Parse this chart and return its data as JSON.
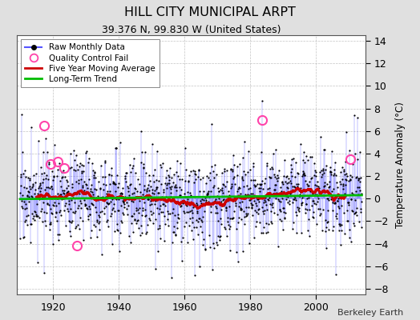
{
  "title": "HILL CITY MUNICIPAL ARPT",
  "subtitle": "39.376 N, 99.830 W (United States)",
  "ylabel": "Temperature Anomaly (°C)",
  "attribution": "Berkeley Earth",
  "start_year": 1910,
  "end_year": 2013,
  "ylim": [
    -8.5,
    14.5
  ],
  "yticks": [
    -8,
    -6,
    -4,
    -2,
    0,
    2,
    4,
    6,
    8,
    10,
    12,
    14
  ],
  "xticks": [
    1920,
    1940,
    1960,
    1980,
    2000
  ],
  "fig_bg_color": "#e0e0e0",
  "plot_bg_color": "#ffffff",
  "raw_line_color": "#5555ff",
  "raw_dot_color": "#000000",
  "moving_avg_color": "#cc0000",
  "trend_color": "#00bb00",
  "qc_fail_color": "#ff44aa",
  "legend_raw_label": "Raw Monthly Data",
  "legend_qc_label": "Quality Control Fail",
  "legend_ma_label": "Five Year Moving Average",
  "legend_trend_label": "Long-Term Trend",
  "qc_fail_times": [
    1917.3,
    1919.2,
    1921.4,
    1923.5,
    1927.3,
    1983.5,
    2010.5
  ],
  "qc_fail_values": [
    6.5,
    3.1,
    3.3,
    2.7,
    -4.2,
    7.0,
    3.5
  ],
  "peak_1983_idx": 877,
  "peak_1983_val": 8.7,
  "peak_early_val": 7.5
}
